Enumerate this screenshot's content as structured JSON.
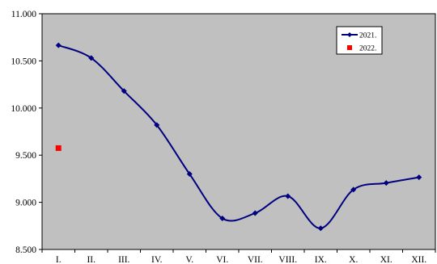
{
  "chart_data": {
    "type": "line",
    "categories": [
      "I.",
      "II.",
      "III.",
      "IV.",
      "V.",
      "VI.",
      "VII.",
      "VIII.",
      "IX.",
      "X.",
      "XI.",
      "XII."
    ],
    "series": [
      {
        "name": "2021.",
        "color": "#000080",
        "marker": "diamond",
        "smooth": true,
        "values": [
          10665,
          10530,
          10180,
          9820,
          9300,
          8830,
          8885,
          9065,
          8725,
          9135,
          9205,
          9265
        ]
      },
      {
        "name": "2022.",
        "color": "#ff0000",
        "marker": "square",
        "values": [
          9575,
          null,
          null,
          null,
          null,
          null,
          null,
          null,
          null,
          null,
          null,
          null
        ]
      }
    ],
    "ylim": [
      8500,
      11000
    ],
    "yticks": [
      8500,
      9000,
      9500,
      10000,
      10500,
      11000
    ],
    "ytick_labels": [
      "8.500",
      "9.000",
      "9.500",
      "10.000",
      "10.500",
      "11.000"
    ],
    "grid": false,
    "plot_background": "#c0c0c0",
    "legend_position": "top-right"
  }
}
